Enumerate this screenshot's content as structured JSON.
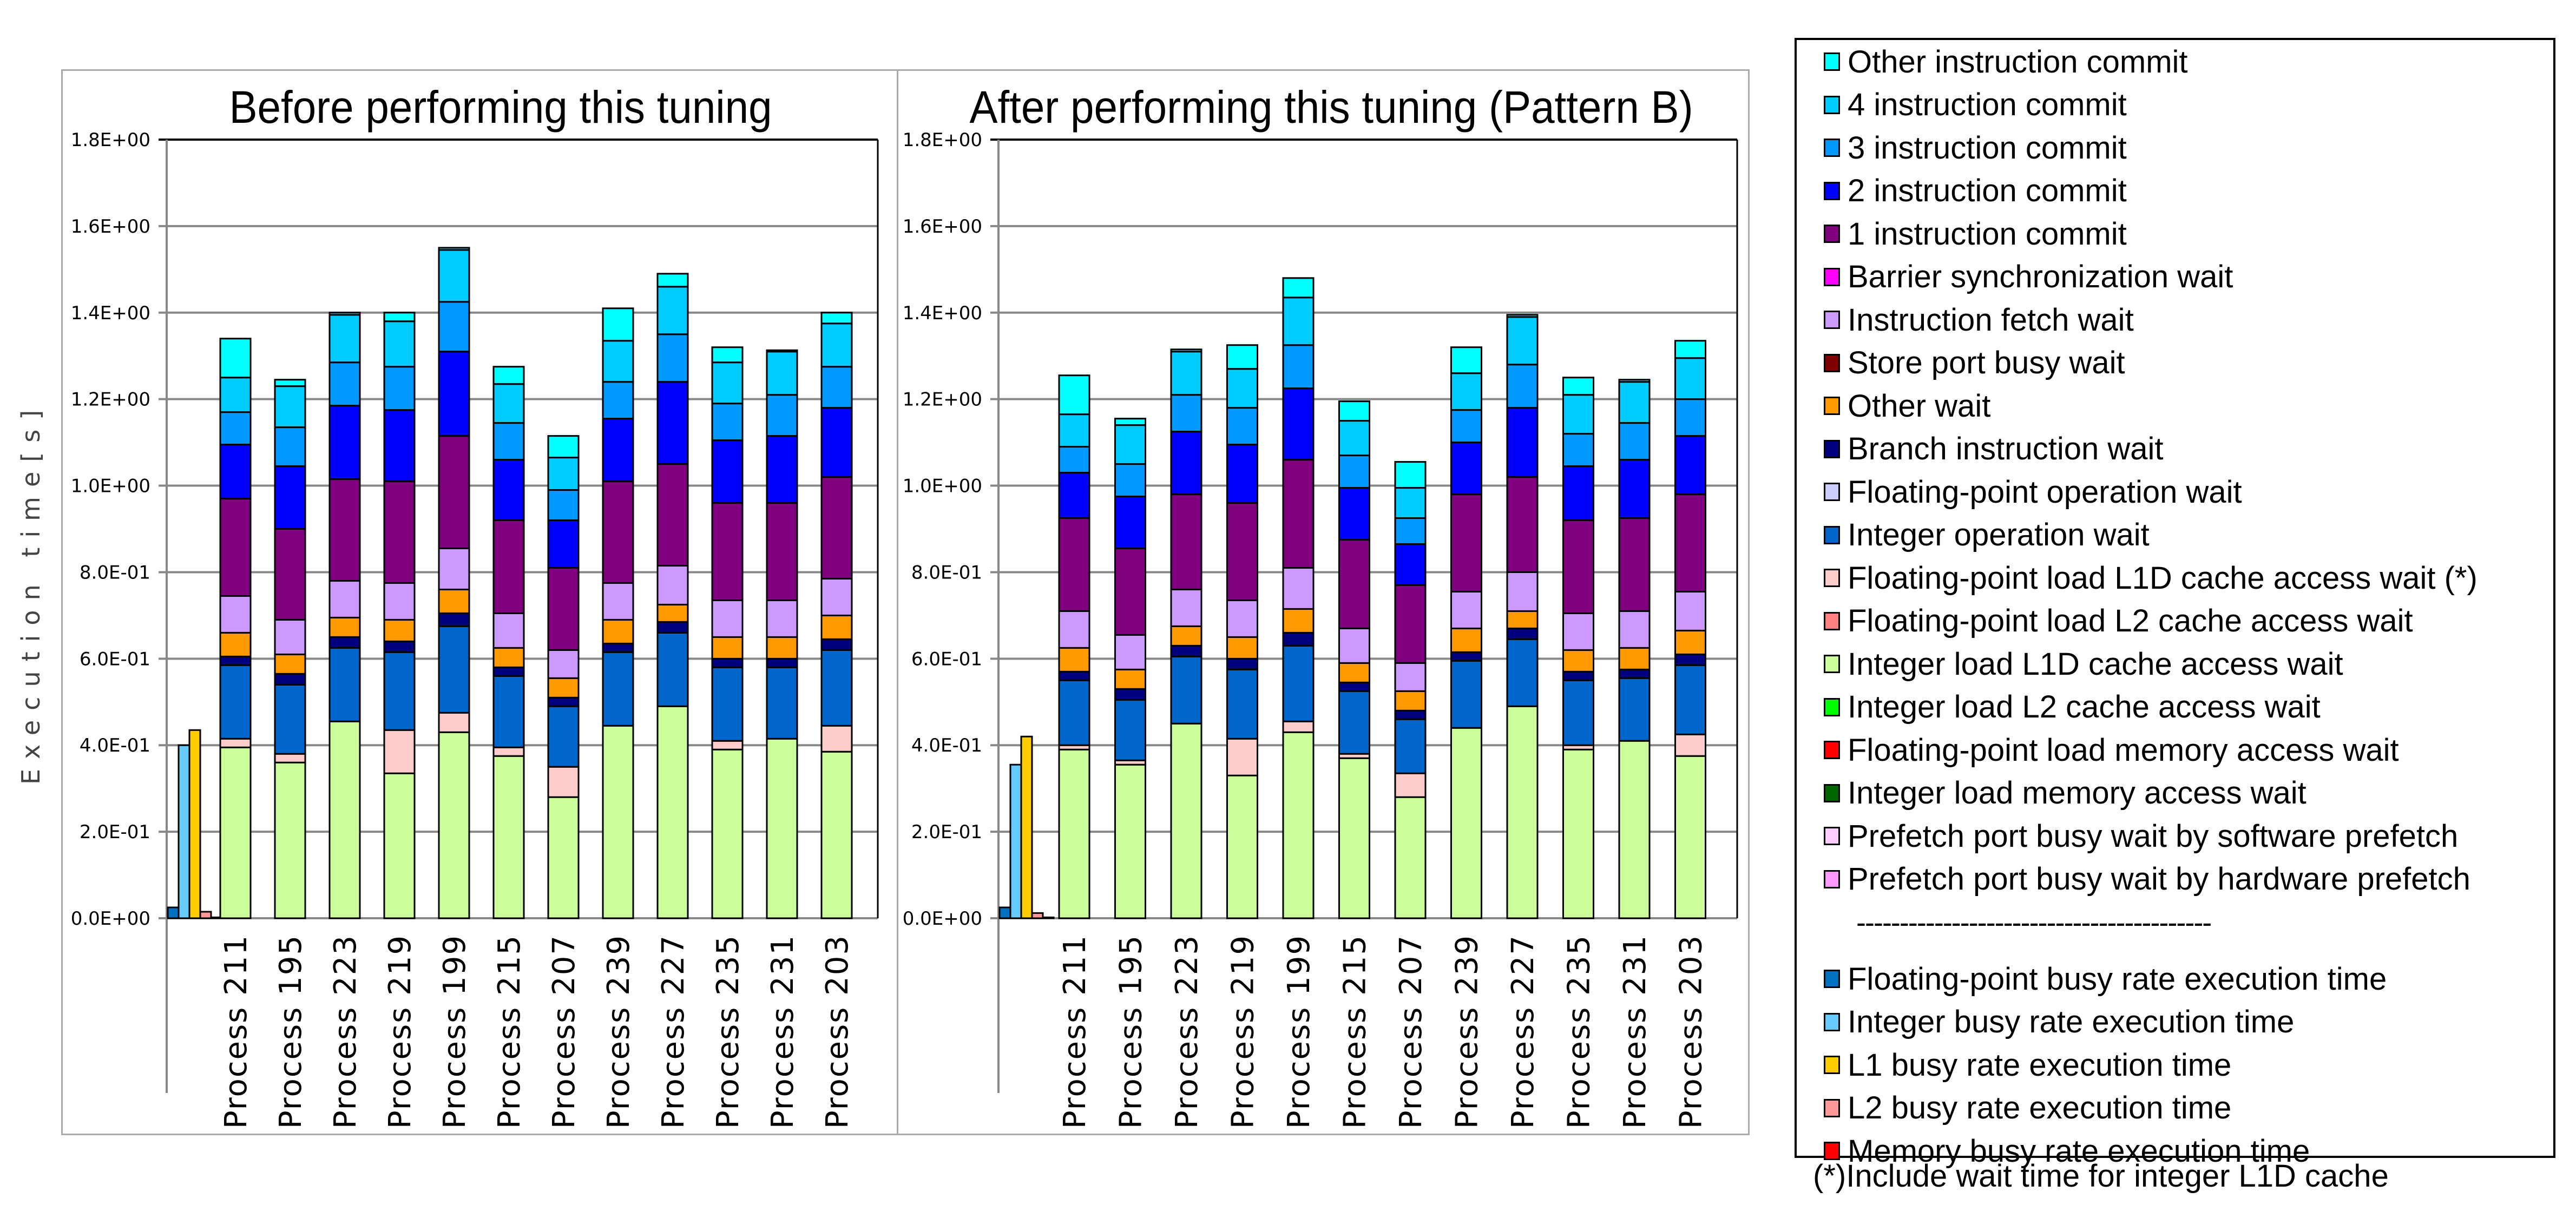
{
  "chart_data": [
    {
      "type": "bar",
      "stacked": true,
      "title": "Before performing this tuning",
      "ylabel": "Execution time[s]",
      "xlabel": "",
      "ylim": [
        0,
        1.8
      ],
      "yticks": [
        "0.0E+00",
        "2.0E-01",
        "4.0E-01",
        "6.0E-01",
        "8.0E-01",
        "1.0E+00",
        "1.2E+00",
        "1.4E+00",
        "1.6E+00",
        "1.8E+00"
      ],
      "grid": true,
      "busy_rates": {
        "Floating-point busy rate execution time": 0.025,
        "Integer busy rate execution time": 0.4,
        "L1 busy rate execution time": 0.435,
        "L2 busy rate execution time": 0.015,
        "Memory busy rate execution time": 0.002
      },
      "categories": [
        "Process 211",
        "Process 195",
        "Process 223",
        "Process 219",
        "Process 199",
        "Process 215",
        "Process 207",
        "Process 239",
        "Process 227",
        "Process 235",
        "Process 231",
        "Process 203"
      ],
      "series": [
        {
          "name": "Integer load L1D cache access wait",
          "values": [
            0.395,
            0.36,
            0.455,
            0.335,
            0.43,
            0.375,
            0.28,
            0.445,
            0.49,
            0.39,
            0.415,
            0.385
          ]
        },
        {
          "name": "Floating-point load L1D cache access wait (*)",
          "values": [
            0.02,
            0.02,
            0.0,
            0.1,
            0.045,
            0.02,
            0.07,
            0.0,
            0.0,
            0.02,
            0.0,
            0.06
          ]
        },
        {
          "name": "Integer operation wait",
          "values": [
            0.17,
            0.16,
            0.17,
            0.18,
            0.2,
            0.165,
            0.14,
            0.17,
            0.17,
            0.17,
            0.165,
            0.175
          ]
        },
        {
          "name": "Branch instruction wait",
          "values": [
            0.02,
            0.025,
            0.025,
            0.025,
            0.03,
            0.02,
            0.02,
            0.02,
            0.025,
            0.02,
            0.02,
            0.025
          ]
        },
        {
          "name": "Other wait",
          "values": [
            0.055,
            0.045,
            0.045,
            0.05,
            0.055,
            0.045,
            0.045,
            0.055,
            0.04,
            0.05,
            0.05,
            0.055
          ]
        },
        {
          "name": "Instruction fetch wait",
          "values": [
            0.085,
            0.08,
            0.085,
            0.085,
            0.095,
            0.08,
            0.065,
            0.085,
            0.09,
            0.085,
            0.085,
            0.085
          ]
        },
        {
          "name": "1 instruction commit",
          "values": [
            0.225,
            0.21,
            0.235,
            0.235,
            0.26,
            0.215,
            0.19,
            0.235,
            0.235,
            0.225,
            0.225,
            0.235
          ]
        },
        {
          "name": "2 instruction commit",
          "values": [
            0.125,
            0.145,
            0.17,
            0.165,
            0.195,
            0.14,
            0.11,
            0.145,
            0.19,
            0.145,
            0.155,
            0.16
          ]
        },
        {
          "name": "3 instruction commit",
          "values": [
            0.075,
            0.09,
            0.1,
            0.1,
            0.115,
            0.085,
            0.07,
            0.085,
            0.11,
            0.085,
            0.095,
            0.095
          ]
        },
        {
          "name": "4 instruction commit",
          "values": [
            0.08,
            0.095,
            0.11,
            0.105,
            0.12,
            0.09,
            0.075,
            0.095,
            0.11,
            0.095,
            0.1,
            0.1
          ]
        },
        {
          "name": "Other instruction commit",
          "values": [
            0.09,
            0.015,
            0.005,
            0.02,
            0.005,
            0.04,
            0.05,
            0.075,
            0.03,
            0.035,
            0.003,
            0.025
          ]
        }
      ]
    },
    {
      "type": "bar",
      "stacked": true,
      "title": "After performing this tuning (Pattern B)",
      "ylabel": "",
      "xlabel": "",
      "ylim": [
        0,
        1.8
      ],
      "yticks": [
        "0.0E+00",
        "2.0E-01",
        "4.0E-01",
        "6.0E-01",
        "8.0E-01",
        "1.0E+00",
        "1.2E+00",
        "1.4E+00",
        "1.6E+00",
        "1.8E+00"
      ],
      "grid": true,
      "busy_rates": {
        "Floating-point busy rate execution time": 0.025,
        "Integer busy rate execution time": 0.355,
        "L1 busy rate execution time": 0.42,
        "L2 busy rate execution time": 0.012,
        "Memory busy rate execution time": 0.002
      },
      "categories": [
        "Process 211",
        "Process 195",
        "Process 223",
        "Process 219",
        "Process 199",
        "Process 215",
        "Process 207",
        "Process 239",
        "Process 227",
        "Process 235",
        "Process 231",
        "Process 203"
      ],
      "series": [
        {
          "name": "Integer load L1D cache access wait",
          "values": [
            0.39,
            0.355,
            0.45,
            0.33,
            0.43,
            0.37,
            0.28,
            0.44,
            0.49,
            0.39,
            0.41,
            0.375
          ]
        },
        {
          "name": "Floating-point load L1D cache access wait (*)",
          "values": [
            0.01,
            0.01,
            0.0,
            0.085,
            0.025,
            0.01,
            0.055,
            0.0,
            0.0,
            0.01,
            0.0,
            0.05
          ]
        },
        {
          "name": "Integer operation wait",
          "values": [
            0.15,
            0.14,
            0.155,
            0.16,
            0.175,
            0.145,
            0.125,
            0.155,
            0.155,
            0.15,
            0.145,
            0.16
          ]
        },
        {
          "name": "Branch instruction wait",
          "values": [
            0.02,
            0.025,
            0.025,
            0.025,
            0.03,
            0.02,
            0.02,
            0.02,
            0.025,
            0.02,
            0.02,
            0.025
          ]
        },
        {
          "name": "Other wait",
          "values": [
            0.055,
            0.045,
            0.045,
            0.05,
            0.055,
            0.045,
            0.045,
            0.055,
            0.04,
            0.05,
            0.05,
            0.055
          ]
        },
        {
          "name": "Instruction fetch wait",
          "values": [
            0.085,
            0.08,
            0.085,
            0.085,
            0.095,
            0.08,
            0.065,
            0.085,
            0.09,
            0.085,
            0.085,
            0.09
          ]
        },
        {
          "name": "1 instruction commit",
          "values": [
            0.215,
            0.2,
            0.22,
            0.225,
            0.25,
            0.205,
            0.18,
            0.225,
            0.22,
            0.215,
            0.215,
            0.225
          ]
        },
        {
          "name": "2 instruction commit",
          "values": [
            0.105,
            0.12,
            0.145,
            0.135,
            0.165,
            0.12,
            0.095,
            0.12,
            0.16,
            0.125,
            0.135,
            0.135
          ]
        },
        {
          "name": "3 instruction commit",
          "values": [
            0.06,
            0.075,
            0.085,
            0.085,
            0.1,
            0.075,
            0.06,
            0.075,
            0.1,
            0.075,
            0.085,
            0.085
          ]
        },
        {
          "name": "4 instruction commit",
          "values": [
            0.075,
            0.09,
            0.1,
            0.09,
            0.11,
            0.08,
            0.07,
            0.085,
            0.11,
            0.09,
            0.095,
            0.095
          ]
        },
        {
          "name": "Other instruction commit",
          "values": [
            0.09,
            0.015,
            0.005,
            0.055,
            0.045,
            0.045,
            0.06,
            0.06,
            0.005,
            0.04,
            0.005,
            0.04
          ]
        }
      ]
    }
  ],
  "legend": {
    "items": [
      {
        "label": "Other instruction commit",
        "color": "#00ffff"
      },
      {
        "label": "4 instruction commit",
        "color": "#00ccff"
      },
      {
        "label": "3 instruction commit",
        "color": "#0099ff"
      },
      {
        "label": "2 instruction commit",
        "color": "#0000ff"
      },
      {
        "label": "1 instruction commit",
        "color": "#800080"
      },
      {
        "label": "Barrier synchronization wait",
        "color": "#ff00ff"
      },
      {
        "label": "Instruction fetch wait",
        "color": "#cc99ff"
      },
      {
        "label": "Store port busy wait",
        "color": "#800000"
      },
      {
        "label": "Other wait",
        "color": "#ff9900"
      },
      {
        "label": "Branch instruction wait",
        "color": "#000080"
      },
      {
        "label": "Floating-point operation wait",
        "color": "#ccccff"
      },
      {
        "label": "Integer operation wait",
        "color": "#0066cc"
      },
      {
        "label": "Floating-point load L1D cache access wait (*)",
        "color": "#ffcccc"
      },
      {
        "label": "Floating-point load L2 cache access wait",
        "color": "#ff8080"
      },
      {
        "label": "Integer load L1D cache access wait",
        "color": "#ccff99"
      },
      {
        "label": "Integer load L2 cache access wait",
        "color": "#00ff00"
      },
      {
        "label": "Floating-point load memory access wait",
        "color": "#ff0000"
      },
      {
        "label": "Integer load memory access wait",
        "color": "#006600"
      },
      {
        "label": "Prefetch port busy wait by software prefetch",
        "color": "#ffccff"
      },
      {
        "label": "Prefetch port busy wait by hardware prefetch",
        "color": "#ff99ff"
      }
    ],
    "separator": "-----------------------------------------",
    "busy_items": [
      {
        "label": "Floating-point busy rate execution time",
        "color": "#0070c0"
      },
      {
        "label": "Integer busy rate execution time",
        "color": "#66ccff"
      },
      {
        "label": "L1 busy rate execution time",
        "color": "#ffcc00"
      },
      {
        "label": "L2 busy rate execution time",
        "color": "#ff9999"
      },
      {
        "label": "Memory busy rate execution time",
        "color": "#ff0000"
      }
    ]
  },
  "footnote": "(*)Include wait time for integer L1D cache"
}
